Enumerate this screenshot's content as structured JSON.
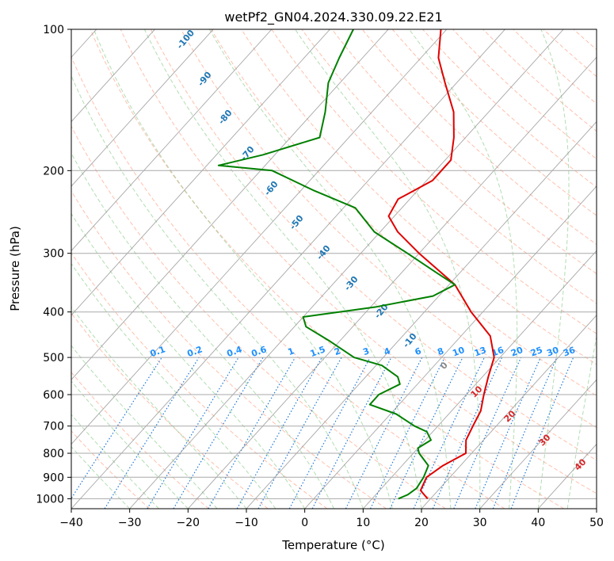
{
  "chart_data": {
    "type": "line",
    "title": "wetPf2_GN04.2024.330.09.22.E21",
    "xlabel": "Temperature (°C)",
    "ylabel": "Pressure (hPa)",
    "xlim": [
      -40,
      50
    ],
    "ylim": [
      1050,
      100
    ],
    "y_scale": "log",
    "grid": true,
    "x_ticks": [
      -40,
      -30,
      -20,
      -10,
      0,
      10,
      20,
      30,
      40,
      50
    ],
    "y_ticks": [
      100,
      200,
      300,
      400,
      500,
      600,
      700,
      800,
      900,
      1000
    ],
    "skew": "skew-T",
    "series": [
      {
        "color": "#e00000",
        "points": [
          [
            1000,
            19.5
          ],
          [
            960,
            17
          ],
          [
            900,
            16
          ],
          [
            850,
            17
          ],
          [
            800,
            19
          ],
          [
            750,
            17
          ],
          [
            700,
            16
          ],
          [
            650,
            15
          ],
          [
            600,
            13
          ],
          [
            550,
            11
          ],
          [
            500,
            9
          ],
          [
            450,
            5
          ],
          [
            400,
            -2
          ],
          [
            350,
            -9
          ],
          [
            300,
            -20
          ],
          [
            270,
            -27
          ],
          [
            250,
            -31
          ],
          [
            230,
            -32
          ],
          [
            210,
            -29
          ],
          [
            190,
            -29
          ],
          [
            170,
            -32
          ],
          [
            150,
            -36
          ],
          [
            130,
            -42
          ],
          [
            115,
            -47
          ],
          [
            100,
            -51
          ]
        ]
      },
      {
        "color": "#008000",
        "points": [
          [
            1000,
            14.5
          ],
          [
            980,
            15.5
          ],
          [
            950,
            16
          ],
          [
            900,
            15.5
          ],
          [
            850,
            14.5
          ],
          [
            800,
            11
          ],
          [
            780,
            10
          ],
          [
            750,
            11
          ],
          [
            720,
            9
          ],
          [
            700,
            6
          ],
          [
            660,
            1
          ],
          [
            630,
            -5
          ],
          [
            600,
            -5
          ],
          [
            570,
            -3
          ],
          [
            550,
            -4.5
          ],
          [
            520,
            -9
          ],
          [
            500,
            -15
          ],
          [
            460,
            -22
          ],
          [
            430,
            -28
          ],
          [
            410,
            -30
          ],
          [
            390,
            -19
          ],
          [
            370,
            -11
          ],
          [
            350,
            -9
          ],
          [
            330,
            -14
          ],
          [
            300,
            -22
          ],
          [
            270,
            -31
          ],
          [
            240,
            -38
          ],
          [
            220,
            -48
          ],
          [
            200,
            -58
          ],
          [
            195,
            -68
          ],
          [
            185,
            -62
          ],
          [
            170,
            -55
          ],
          [
            150,
            -58
          ],
          [
            130,
            -62
          ],
          [
            115,
            -64
          ],
          [
            100,
            -66
          ]
        ]
      }
    ],
    "mixing_ratio_labels": [
      "0.1",
      "0.2",
      "0.4",
      "0.6",
      "1",
      "1.5",
      "2",
      "3",
      "4",
      "6",
      "8",
      "10",
      "13",
      "16",
      "20",
      "25",
      "30",
      "36"
    ],
    "dry_adiabat_labels": [
      "-100",
      "-90",
      "-80",
      "-70",
      "-60",
      "-50",
      "-40",
      "-30",
      "-20",
      "-10"
    ],
    "moist_adiabat_labels": [
      "0",
      "10",
      "20",
      "30",
      "40"
    ],
    "colors": {
      "temperature": "#e00000",
      "dewpoint": "#008000",
      "dry_adiabat": "#ff8c69",
      "moist_adiabat": "#66bb66",
      "mixing_ratio": "#1e78d6",
      "isotherm": "#999999",
      "isobar": "#aaaaaa"
    }
  }
}
